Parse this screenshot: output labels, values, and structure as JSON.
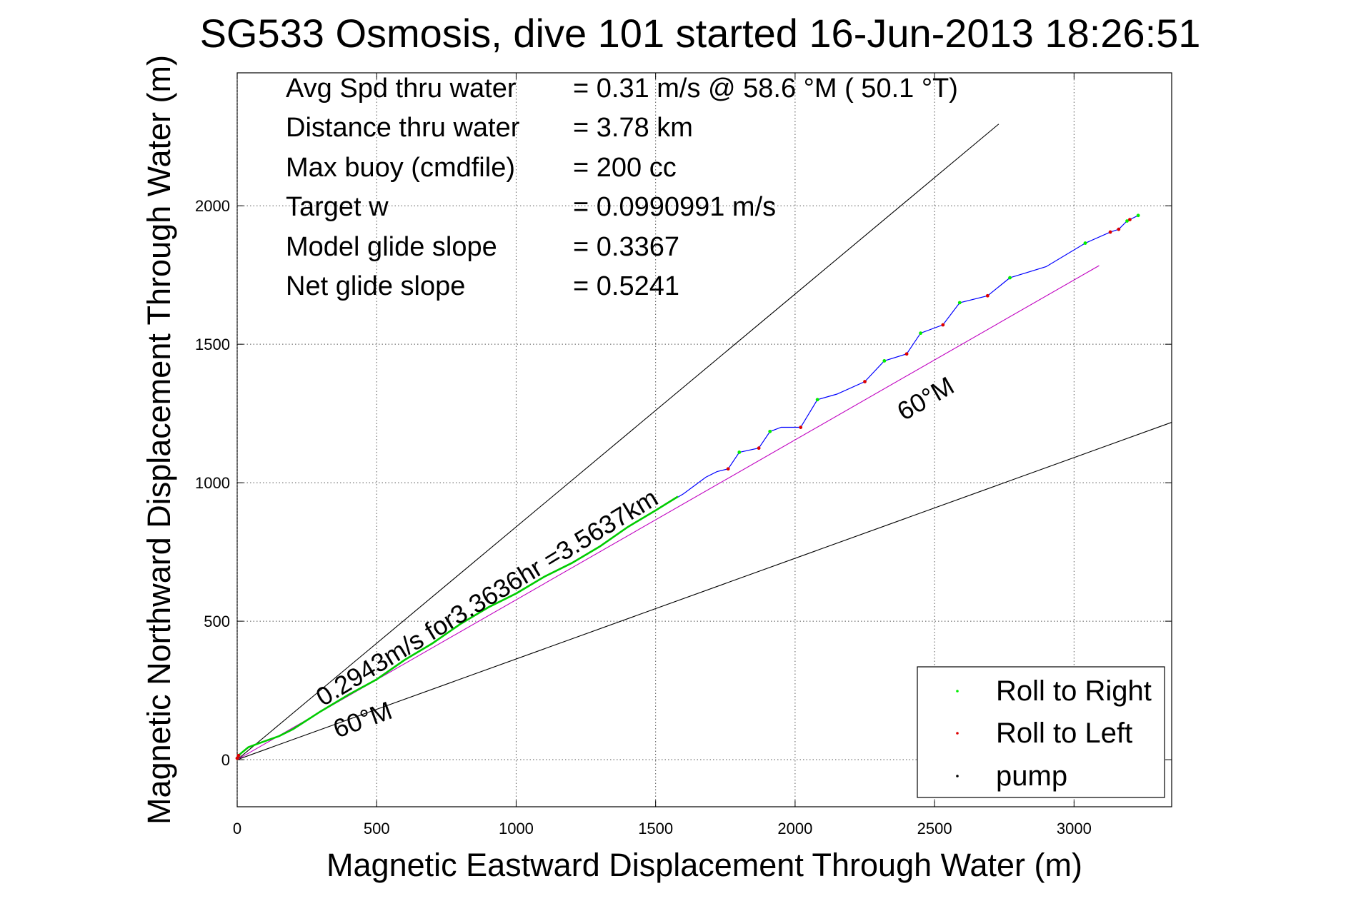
{
  "chart_data": {
    "type": "line",
    "title": "SG533 Osmosis, dive 101 started 16-Jun-2013 18:26:51",
    "xlabel": "Magnetic Eastward Displacement Through Water (m)",
    "ylabel": "Magnetic Northward Displacement Through Water (m)",
    "xlim": [
      0,
      3350
    ],
    "ylim": [
      -170,
      2480
    ],
    "xticks": [
      0,
      500,
      1000,
      1500,
      2000,
      2500,
      3000
    ],
    "yticks": [
      0,
      500,
      1000,
      1500,
      2000
    ],
    "grid": true,
    "legend_position": "bottom-right",
    "stats": [
      {
        "label": "Avg Spd thru water",
        "value": "=  0.31 m/s @  58.6 °M ( 50.1 °T)"
      },
      {
        "label": "Distance thru water",
        "value": "=  3.78 km"
      },
      {
        "label": "Max buoy (cmdfile)",
        "value": "= 200 cc"
      },
      {
        "label": "Target w",
        "value": "= 0.0990991 m/s"
      },
      {
        "label": "Model glide slope",
        "value": "= 0.3367"
      },
      {
        "label": "Net glide slope",
        "value": "= 0.5241"
      }
    ],
    "annotations": {
      "speed_text": "0.2943m/s for3.3636hr =3.5637km",
      "heading_label_1": "60°M",
      "heading_label_2": "60°M"
    },
    "reference_lines": [
      {
        "from": [
          0,
          0
        ],
        "to": [
          2730,
          2295
        ],
        "color": "#000000"
      },
      {
        "from": [
          0,
          0
        ],
        "to": [
          3350,
          1218
        ],
        "color": "#000000"
      },
      {
        "from": [
          0,
          0
        ],
        "to": [
          3090,
          1784
        ],
        "color": "#c000c0"
      }
    ],
    "track_color": "#0000ff",
    "dive_track": [
      [
        0,
        0
      ],
      [
        10,
        20
      ],
      [
        40,
        45
      ],
      [
        80,
        60
      ],
      [
        150,
        85
      ],
      [
        200,
        110
      ],
      [
        300,
        175
      ],
      [
        400,
        235
      ],
      [
        500,
        290
      ],
      [
        600,
        360
      ],
      [
        700,
        420
      ],
      [
        800,
        490
      ],
      [
        900,
        550
      ],
      [
        1000,
        600
      ],
      [
        1100,
        660
      ],
      [
        1200,
        710
      ],
      [
        1300,
        770
      ],
      [
        1400,
        840
      ],
      [
        1500,
        900
      ],
      [
        1600,
        960
      ],
      [
        1680,
        1020
      ],
      [
        1720,
        1040
      ],
      [
        1760,
        1050
      ],
      [
        1800,
        1110
      ],
      [
        1870,
        1125
      ],
      [
        1910,
        1185
      ],
      [
        1950,
        1200
      ],
      [
        2020,
        1200
      ],
      [
        2080,
        1300
      ],
      [
        2150,
        1320
      ],
      [
        2250,
        1365
      ],
      [
        2320,
        1440
      ],
      [
        2400,
        1465
      ],
      [
        2450,
        1540
      ],
      [
        2530,
        1570
      ],
      [
        2590,
        1650
      ],
      [
        2690,
        1675
      ],
      [
        2770,
        1740
      ],
      [
        2900,
        1780
      ],
      [
        3040,
        1865
      ],
      [
        3130,
        1905
      ],
      [
        3160,
        1915
      ],
      [
        3190,
        1945
      ],
      [
        3230,
        1965
      ]
    ],
    "green_segment": [
      [
        0,
        0
      ],
      [
        10,
        20
      ],
      [
        40,
        45
      ],
      [
        80,
        60
      ],
      [
        150,
        85
      ],
      [
        200,
        110
      ],
      [
        300,
        175
      ],
      [
        400,
        235
      ],
      [
        500,
        290
      ],
      [
        600,
        360
      ],
      [
        700,
        420
      ],
      [
        800,
        490
      ],
      [
        900,
        550
      ],
      [
        1000,
        600
      ],
      [
        1100,
        660
      ],
      [
        1200,
        710
      ],
      [
        1300,
        770
      ],
      [
        1400,
        840
      ],
      [
        1500,
        900
      ],
      [
        1580,
        950
      ]
    ],
    "series": [
      {
        "name": "Roll to Right",
        "color": "#00ee00",
        "points": [
          [
            1800,
            1110
          ],
          [
            1910,
            1185
          ],
          [
            2080,
            1300
          ],
          [
            2320,
            1440
          ],
          [
            2450,
            1540
          ],
          [
            2590,
            1650
          ],
          [
            2770,
            1740
          ],
          [
            3040,
            1865
          ],
          [
            3190,
            1945
          ],
          [
            3230,
            1965
          ]
        ]
      },
      {
        "name": "Roll to Left",
        "color": "#dd0000",
        "points": [
          [
            0,
            5
          ],
          [
            5,
            15
          ],
          [
            1760,
            1050
          ],
          [
            1870,
            1125
          ],
          [
            2020,
            1200
          ],
          [
            2250,
            1365
          ],
          [
            2400,
            1465
          ],
          [
            2530,
            1570
          ],
          [
            2690,
            1675
          ],
          [
            3130,
            1905
          ],
          [
            3160,
            1915
          ],
          [
            3200,
            1950
          ]
        ]
      },
      {
        "name": "pump",
        "color": "#000000",
        "points": []
      }
    ]
  }
}
